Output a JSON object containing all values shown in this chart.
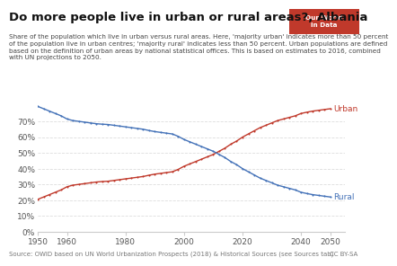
{
  "title": "Do more people live in urban or rural areas?, Albania",
  "subtitle": "Share of the population which live in urban versus rural areas. Here, 'majority urban' indicates more than 50 percent\nof the population live in urban centres; 'majority rural' indicates less than 50 percent. Urban populations are defined\nbased on the definition of urban areas by national statistical offices. This is based on estimates to 2016, combined\nwith UN projections to 2050.",
  "source": "Source: OWID based on UN World Urbanization Prospects (2018) & Historical Sources (see Sources tab)",
  "license": "CC BY-SA",
  "logo_text": "Our World\nin Data",
  "logo_bg": "#c0392b",
  "urban_color": "#c0392b",
  "rural_color": "#4472b8",
  "urban_label": "Urban",
  "rural_label": "Rural",
  "years": [
    1950,
    1952,
    1954,
    1956,
    1958,
    1960,
    1962,
    1964,
    1966,
    1968,
    1970,
    1972,
    1974,
    1976,
    1978,
    1980,
    1982,
    1984,
    1986,
    1988,
    1990,
    1992,
    1994,
    1996,
    1998,
    2000,
    2002,
    2004,
    2006,
    2008,
    2010,
    2012,
    2014,
    2016,
    2018,
    2020,
    2022,
    2024,
    2026,
    2028,
    2030,
    2032,
    2034,
    2036,
    2038,
    2040,
    2042,
    2044,
    2046,
    2048,
    2050
  ],
  "urban_pct": [
    20.5,
    22.0,
    23.5,
    25.0,
    26.5,
    28.5,
    29.5,
    30.0,
    30.5,
    31.0,
    31.5,
    31.8,
    32.0,
    32.5,
    33.0,
    33.5,
    34.0,
    34.5,
    35.0,
    35.8,
    36.5,
    37.0,
    37.5,
    38.0,
    39.5,
    41.5,
    43.0,
    44.5,
    46.0,
    47.5,
    49.0,
    51.0,
    53.0,
    55.5,
    57.5,
    60.0,
    62.0,
    64.0,
    66.0,
    67.5,
    69.0,
    70.5,
    71.5,
    72.5,
    73.5,
    75.0,
    75.8,
    76.5,
    77.0,
    77.5,
    78.0
  ],
  "rural_pct": [
    79.5,
    78.0,
    76.5,
    75.0,
    73.5,
    71.5,
    70.5,
    70.0,
    69.5,
    69.0,
    68.5,
    68.2,
    68.0,
    67.5,
    67.0,
    66.5,
    66.0,
    65.5,
    65.0,
    64.2,
    63.5,
    63.0,
    62.5,
    62.0,
    60.5,
    58.5,
    57.0,
    55.5,
    54.0,
    52.5,
    51.0,
    49.0,
    47.0,
    44.5,
    42.5,
    40.0,
    38.0,
    36.0,
    34.0,
    32.5,
    31.0,
    29.5,
    28.5,
    27.5,
    26.5,
    25.0,
    24.2,
    23.5,
    23.0,
    22.5,
    22.0
  ],
  "xlim": [
    1950,
    2055
  ],
  "ylim": [
    0,
    82
  ],
  "yticks": [
    0,
    10,
    20,
    30,
    40,
    50,
    60,
    70
  ],
  "xticks": [
    1950,
    1960,
    1980,
    2000,
    2020,
    2040,
    2050
  ],
  "bg_color": "#ffffff",
  "grid_color": "#dddddd",
  "title_fontsize": 9.5,
  "subtitle_fontsize": 5.2,
  "axis_fontsize": 6.5,
  "label_fontsize": 6.5,
  "source_fontsize": 5.0
}
